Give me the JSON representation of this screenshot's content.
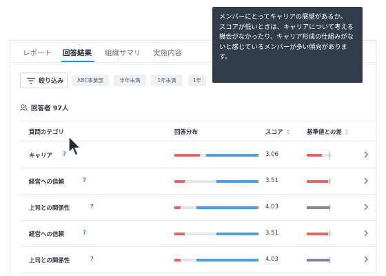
{
  "tabs": [
    {
      "label": "レポート"
    },
    {
      "label": "回答結果"
    },
    {
      "label": "組織サマリ"
    },
    {
      "label": "実施内容"
    }
  ],
  "filter": {
    "button_label": "絞り込み",
    "chips": [
      "ABC事業部",
      "半年未満",
      "1年未満",
      "1年"
    ]
  },
  "respondents": {
    "label": "回答者 97人"
  },
  "table": {
    "headers": {
      "category": "質問カテゴリ",
      "distribution": "回答分布",
      "score": "スコア",
      "diff": "基準値との差"
    },
    "rows": [
      {
        "category": "キャリア",
        "help": "?",
        "dist": [
          0.3,
          0.08,
          0.62
        ],
        "score": "3.06",
        "diff_level": 0.62,
        "diff_color": "#f06262"
      },
      {
        "category": "経営への信頼",
        "help": "?",
        "dist": [
          0.12,
          0.38,
          0.5
        ],
        "score": "3.51",
        "diff_level": 0.85,
        "diff_color": "#f06262"
      },
      {
        "category": "上司との関係性",
        "help": "?",
        "dist": [
          0.07,
          0.19,
          0.74
        ],
        "score": "4.03",
        "diff_level": 0.95,
        "diff_color": "#7e8998"
      },
      {
        "category": "経営への信頼",
        "help": "?",
        "dist": [
          0.12,
          0.38,
          0.5
        ],
        "score": "3.51",
        "diff_level": 0.85,
        "diff_color": "#f06262"
      },
      {
        "category": "上司との関係性",
        "help": "?",
        "dist": [
          0.07,
          0.19,
          0.74
        ],
        "score": "4.03",
        "diff_level": 0.95,
        "diff_color": "#7e8998"
      }
    ]
  },
  "tooltip": {
    "text": "メンバーにとってキャリアの展望があるか。\nスコアが低いときは、キャリアについて考える機会がなかったり、キャリア形成の仕組みがないと感じているメンバーが多い傾向があります。"
  },
  "colors": {
    "accent": "#2d8fd6",
    "low": "#f06262",
    "mid": "#e3e6ea",
    "high": "#4a9ee8",
    "neutral": "#7e8998"
  },
  "icons": {
    "filter": "filter-icon",
    "people": "people-icon",
    "chevron": "chevron-right-icon",
    "cursor": "mouse-cursor-icon"
  }
}
